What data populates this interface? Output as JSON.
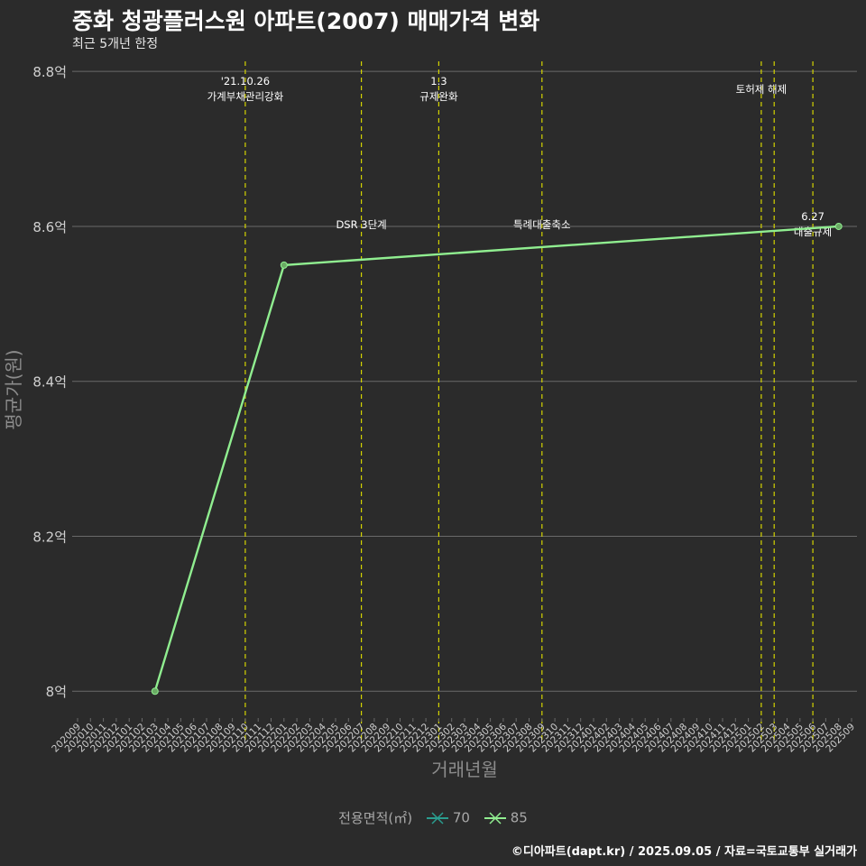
{
  "title": "중화 청광플러스원 아파트(2007) 매매가격 변화",
  "subtitle": "최근 5개년 한정",
  "caption": "©디아파트(dapt.kr) / 2025.09.05 / 자료=국토교통부 실거래가",
  "colors": {
    "background": "#2b2b2b",
    "grid": "#6a6a6a",
    "event_line": "#d4d400",
    "series_70": "#2a9d8f",
    "series_85": "#90ee90"
  },
  "legend": {
    "title": "전용면적(㎡)",
    "items": [
      {
        "label": "70",
        "color": "#2a9d8f"
      },
      {
        "label": "85",
        "color": "#90ee90"
      }
    ]
  },
  "chart_data": {
    "type": "line",
    "xlabel": "거래년월",
    "ylabel": "평균가(원)",
    "x_categories": [
      "202009",
      "202010",
      "202011",
      "202012",
      "202101",
      "202102",
      "202103",
      "202104",
      "202105",
      "202106",
      "202107",
      "202108",
      "202109",
      "202110",
      "202111",
      "202112",
      "202201",
      "202202",
      "202203",
      "202204",
      "202205",
      "202206",
      "202207",
      "202208",
      "202209",
      "202210",
      "202211",
      "202212",
      "202301",
      "202302",
      "202303",
      "202304",
      "202305",
      "202306",
      "202307",
      "202308",
      "202309",
      "202310",
      "202311",
      "202312",
      "202401",
      "202402",
      "202403",
      "202404",
      "202405",
      "202406",
      "202407",
      "202408",
      "202409",
      "202410",
      "202411",
      "202412",
      "202501",
      "202502",
      "202503",
      "202504",
      "202505",
      "202506",
      "202507",
      "202508",
      "202509"
    ],
    "y_ticks": [
      {
        "value": 8.0,
        "label": "8억"
      },
      {
        "value": 8.2,
        "label": "8.2억"
      },
      {
        "value": 8.4,
        "label": "8.4억"
      },
      {
        "value": 8.6,
        "label": "8.6억"
      },
      {
        "value": 8.8,
        "label": "8.8억"
      }
    ],
    "ylim": [
      7.97,
      8.82
    ],
    "grid": true,
    "legend_position": "bottom",
    "series": [
      {
        "name": "70",
        "points": []
      },
      {
        "name": "85",
        "points": [
          {
            "x": "202103",
            "y": 8.0
          },
          {
            "x": "202201",
            "y": 8.55
          },
          {
            "x": "202508",
            "y": 8.6
          }
        ]
      }
    ],
    "events": [
      {
        "x": "202110",
        "label_lines": [
          "'21.10.26",
          "가계부채관리강화"
        ],
        "label_level": "top"
      },
      {
        "x": "202207",
        "label_lines": [
          "DSR 3단계"
        ],
        "label_level": "mid"
      },
      {
        "x": "202301",
        "label_lines": [
          "1.3",
          "규제완화"
        ],
        "label_level": "top"
      },
      {
        "x": "202309",
        "label_lines": [
          "특례대출축소"
        ],
        "label_level": "mid"
      },
      {
        "x": "202502",
        "label_lines": [
          "토허제 해제"
        ],
        "label_level": "top_single"
      },
      {
        "x": "202503",
        "label_lines": [],
        "label_level": "none"
      },
      {
        "x": "202506",
        "label_lines": [
          "6.27",
          "대출규제"
        ],
        "label_level": "mid_two"
      }
    ]
  }
}
